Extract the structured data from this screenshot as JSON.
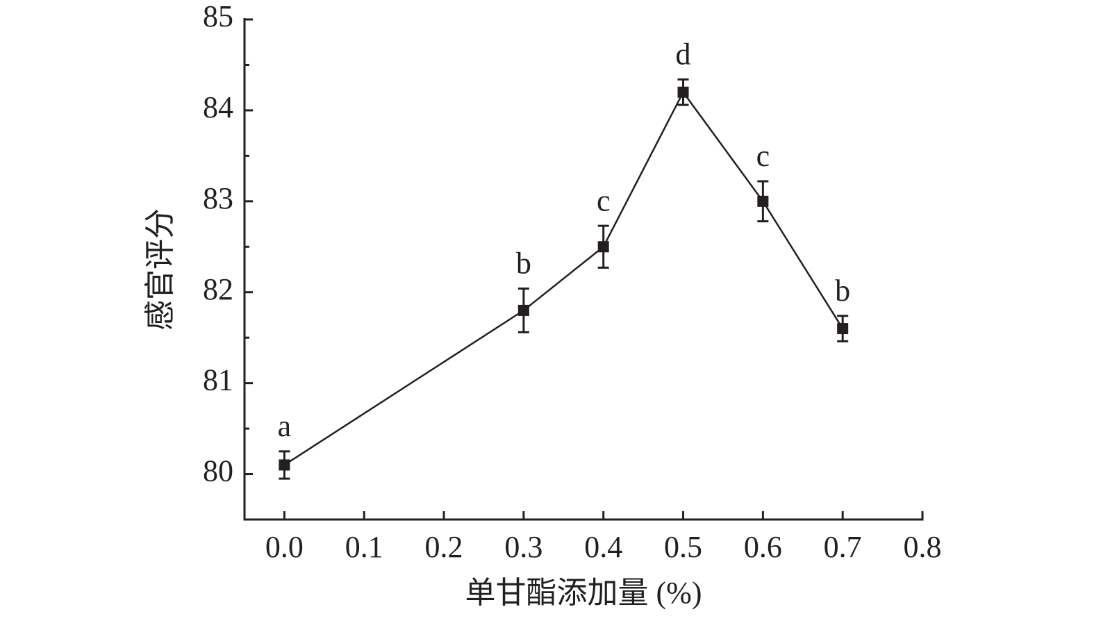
{
  "chart_data": {
    "type": "line",
    "x_label": "单甘酯添加量 (%)",
    "y_label": "感官评分",
    "x": [
      0,
      0.3,
      0.4,
      0.5,
      0.6,
      0.7
    ],
    "series": [
      {
        "color": "#231f20",
        "values": [
          80.1,
          81.8,
          82.5,
          84.2,
          83.0,
          81.6
        ],
        "errors": [
          0.15,
          0.24,
          0.23,
          0.14,
          0.22,
          0.14
        ],
        "annotations": [
          "a",
          "b",
          "c",
          "d",
          "c",
          "b"
        ]
      }
    ],
    "xlim": [
      -0.05,
      0.8
    ],
    "xticks": [
      {
        "value": 0,
        "label": "0.0"
      },
      0.1,
      0.2,
      0.3,
      0.4,
      0.5,
      0.6,
      0.7,
      0.8
    ],
    "ylim": [
      79.5,
      85
    ],
    "yticks": [
      80,
      81,
      82,
      83,
      84,
      85
    ]
  }
}
